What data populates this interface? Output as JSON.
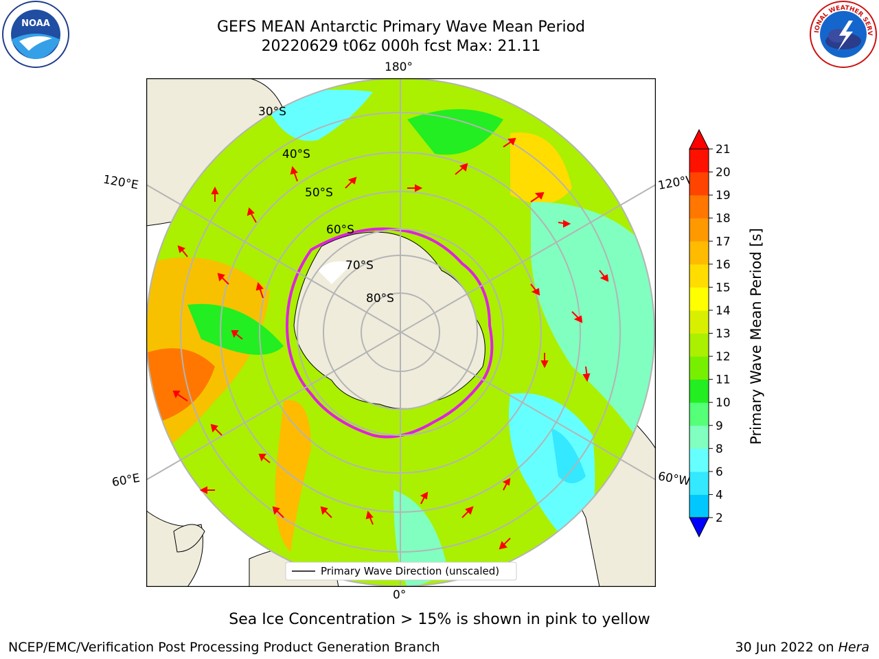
{
  "title": {
    "line1": "GEFS MEAN Antarctic Primary Wave Mean Period",
    "line2": "20220629 t06z 000h fcst   Max: 21.11"
  },
  "logos": {
    "left": "noaa-logo",
    "left_text": "NOAA",
    "right": "nws-logo",
    "right_text": "NATIONAL WEATHER SERVICE"
  },
  "map": {
    "projection": "south-polar-stereographic",
    "longitude_labels": {
      "top": "180°",
      "bottom": "0°",
      "upper_left": "120°E",
      "upper_right": "120°W",
      "lower_left": "60°E",
      "lower_right": "60°W"
    },
    "latitude_labels": [
      "30°S",
      "40°S",
      "50°S",
      "60°S",
      "70°S",
      "80°S"
    ],
    "legend_label": "Primary Wave Direction (unscaled)",
    "colors": {
      "land": "#efecdc",
      "ice_edge": "#e020e0",
      "arrows": "#ff0000",
      "grid": "#b4b4b4"
    }
  },
  "colorbar": {
    "label": "Primary Wave Mean Period [s]",
    "ticks": [
      "2",
      "4",
      "6",
      "8",
      "9",
      "10",
      "11",
      "12",
      "13",
      "14",
      "15",
      "16",
      "17",
      "18",
      "19",
      "20",
      "21"
    ],
    "colors": [
      "#0040ff",
      "#00c8ff",
      "#33e8ff",
      "#66ffff",
      "#80ffc0",
      "#55ff77",
      "#22ee22",
      "#77f000",
      "#aaf000",
      "#d8f000",
      "#ffff00",
      "#ffdd00",
      "#ffbb00",
      "#ff9900",
      "#ff7700",
      "#ff4400",
      "#ff1100"
    ],
    "under_color": "#0000ff",
    "over_color": "#ff0000"
  },
  "footer": {
    "ice_note": "Sea Ice Concentration > 15% is shown in pink to yellow",
    "left": "NCEP/EMC/Verification Post Processing Product Generation Branch",
    "right_date": "30 Jun 2022 on ",
    "right_host": "Hera"
  }
}
